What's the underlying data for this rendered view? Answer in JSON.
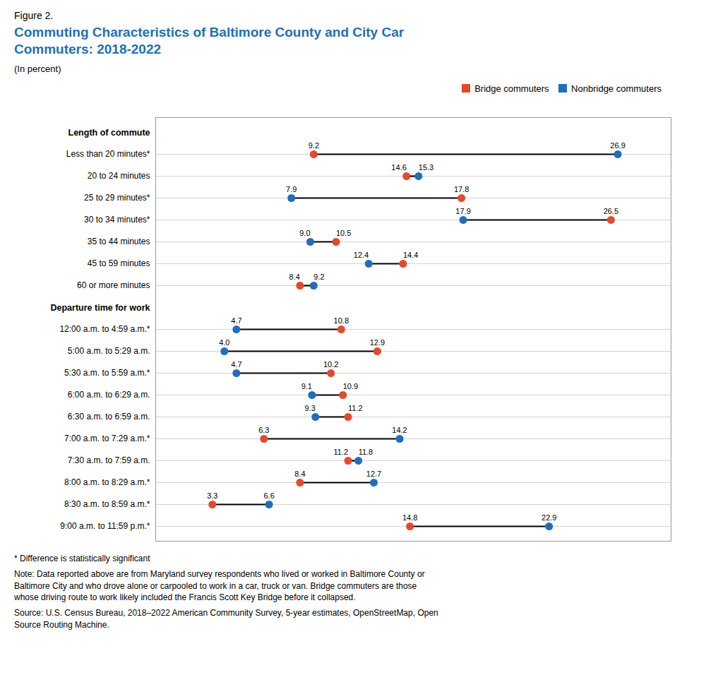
{
  "chart_data": {
    "type": "dumbbell",
    "title": "Commuting Characteristics of Baltimore County and City Car\nCommuters: 2018-2022",
    "subtitle": "(In percent)",
    "annotations": [
      "Figure 2.",
      "* Difference is statistically significant",
      "Note: Data reported above are from Maryland survey respondents who lived or worked in Baltimore County or\nBaltimore City and who drove alone or carpooled to work in a car, truck or van. Bridge commuters are those\nwhose driving route to work likely included the Francis Scott Key Bridge before it collapsed.",
      "Source: U.S. Census Bureau, 2018–2022 American Community Survey, 5-year estimates, OpenStreetMap, Open\nSource Routing Machine."
    ],
    "categories": [
      "Length of commute",
      "Less than 20 minutes*",
      "20 to 24 minutes",
      "25 to 29 minutes*",
      "30 to 34 minutes*",
      "35 to 44 minutes",
      "45 to 59 minutes",
      "60 or more minutes",
      "Departure time for work",
      "12:00 a.m. to 4:59 a.m.*",
      "5:00 a.m. to 5:29 a.m.",
      "5:30 a.m. to 5:59 a.m.*",
      "6:00 a.m. to 6:29 a.m.",
      "6:30 a.m. to 6:59 a.m.",
      "7:00 a.m. to 7:29 a.m.*",
      "7:30 a.m. to 7:59 a.m.",
      "8:00 a.m. to 8:29 a.m.*",
      "8:30 a.m. to 8:59 a.m.*",
      "9:00 a.m. to 11:59 p.m.*"
    ],
    "series": [
      {
        "name": "Bridge commuters",
        "color": "#E8472A",
        "values": [
          null,
          9.2,
          14.6,
          17.8,
          26.5,
          10.5,
          14.4,
          8.4,
          null,
          10.8,
          12.9,
          10.2,
          10.9,
          11.2,
          6.3,
          11.2,
          8.4,
          3.3,
          14.8
        ],
        "value_labels": [
          null,
          "9.2",
          "14.6",
          "17.8",
          "26.5",
          "10.5",
          "14.4",
          "8.4",
          null,
          "10.8",
          "12.9",
          "10.2",
          "10.9",
          "11.2",
          "6.3",
          "11.2",
          "8.4",
          "3.3",
          "14.8"
        ]
      },
      {
        "name": "Nonbridge commuters",
        "color": "#1F6EBD",
        "values": [
          null,
          26.9,
          15.3,
          7.9,
          17.9,
          9.0,
          12.4,
          9.2,
          null,
          4.7,
          4.0,
          4.7,
          9.1,
          9.3,
          14.2,
          11.8,
          12.7,
          6.6,
          22.9
        ],
        "value_labels": [
          null,
          "26.9",
          "15.3",
          "7.9",
          "17.9",
          "9.0",
          "12.4",
          "9.2",
          null,
          "4.7",
          "4.0",
          "4.7",
          "9.1",
          "9.3",
          "14.2",
          "11.8",
          "12.7",
          "6.6",
          "22.9"
        ]
      }
    ],
    "xlim": [
      0,
      30
    ],
    "orientation": "horizontal",
    "tick_labels": "y",
    "grid": true,
    "legend": "upper right",
    "data_labels": true
  }
}
